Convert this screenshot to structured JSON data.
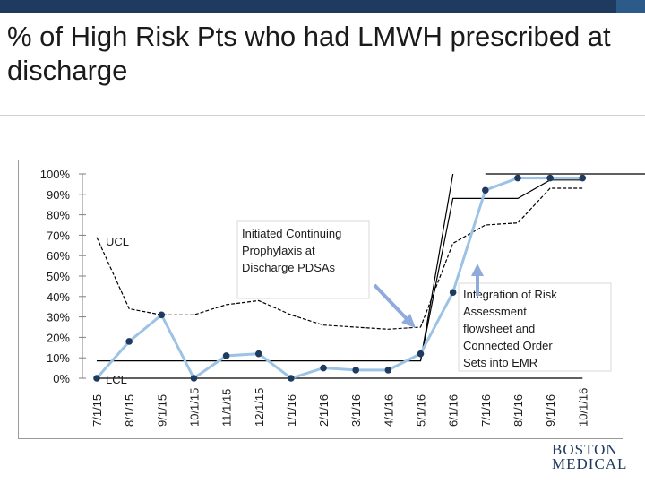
{
  "title": "% of High Risk Pts who had LMWH prescribed at discharge",
  "chart_data": {
    "type": "line",
    "categories": [
      "7/1/15",
      "8/1/15",
      "9/1/15",
      "10/1/15",
      "11/1/15",
      "12/1/15",
      "1/1/16",
      "2/1/16",
      "3/1/16",
      "4/1/16",
      "5/1/16",
      "6/1/16",
      "7/1/16",
      "8/1/16",
      "9/1/16",
      "10/1/16"
    ],
    "yticks": [
      "0%",
      "10%",
      "20%",
      "30%",
      "40%",
      "50%",
      "60%",
      "70%",
      "80%",
      "90%",
      "100%"
    ],
    "ylim": [
      0,
      100
    ],
    "series": [
      {
        "name": "",
        "role": "data",
        "values": [
          0,
          18,
          31,
          0,
          11,
          12,
          0,
          5,
          4,
          4,
          12,
          42,
          92,
          98,
          98,
          98
        ]
      },
      {
        "name": "",
        "role": "center",
        "values": [
          8.5,
          8.5,
          8.5,
          8.5,
          8.5,
          8.5,
          8.5,
          8.5,
          8.5,
          8.5,
          8.5,
          88,
          88,
          88,
          97,
          97
        ]
      },
      {
        "name": "",
        "role": "ucl",
        "values": [
          69,
          34,
          31,
          31,
          36,
          38,
          31,
          26,
          25,
          24,
          25,
          66,
          75,
          76,
          93,
          93
        ]
      },
      {
        "name": "",
        "role": "upper",
        "values": [
          100,
          100,
          100,
          100,
          100,
          100,
          100,
          100,
          100,
          100,
          100,
          100,
          100,
          100,
          100,
          100
        ]
      },
      {
        "name": "",
        "role": "lcl",
        "values": [
          0,
          0,
          0,
          0,
          0,
          0,
          0,
          0,
          0,
          0,
          0,
          0,
          0,
          0,
          0,
          0
        ]
      }
    ],
    "labels": {
      "ucl": "UCL",
      "lcl": "LCL"
    },
    "annotations": [
      {
        "id": "pdsa",
        "text": [
          "Initiated Continuing",
          "Prophylaxis at",
          "Discharge PDSAs"
        ],
        "arrow_to_index": 10
      },
      {
        "id": "risk",
        "text": [
          "Integration of Risk",
          "Assessment",
          "flowsheet and",
          "Connected Order",
          "Sets into EMR"
        ],
        "arrow_to_index": 11
      }
    ],
    "colors": {
      "data": "#9cc3e5",
      "marker": "#1f3a5f",
      "limits": "#000000",
      "arrow": "#8faadc"
    }
  },
  "logo": {
    "line1": "BOSTON",
    "line2": "MEDICAL"
  }
}
